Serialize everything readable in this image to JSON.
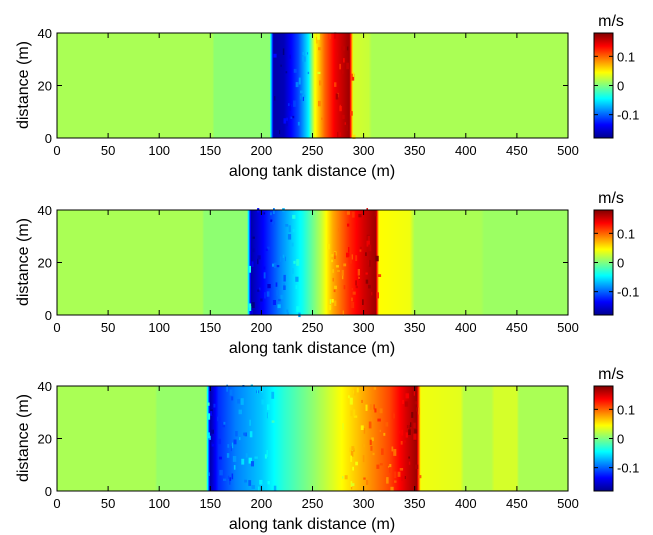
{
  "chart_data": [
    {
      "type": "heatmap",
      "xlabel": "along tank distance (m)",
      "ylabel": "distance (m)",
      "xlim": [
        0,
        500
      ],
      "ylim": [
        0,
        40
      ],
      "x_ticks": [
        "0",
        "50",
        "100",
        "150",
        "200",
        "250",
        "300",
        "350",
        "400",
        "450",
        "500"
      ],
      "y_ticks": [
        "0",
        "20",
        "40"
      ],
      "colorbar": {
        "label": "m/s",
        "range": [
          -0.18,
          0.18
        ],
        "ticks": [
          "0.1",
          "0",
          "-0.1"
        ],
        "tick_values": [
          0.1,
          0,
          -0.1
        ],
        "colormap": "jet"
      },
      "field_profile": [
        {
          "x": 0,
          "v": 0.015
        },
        {
          "x": 152,
          "v": 0.015
        },
        {
          "x": 154,
          "v": 0.005
        },
        {
          "x": 208,
          "v": 0.005
        },
        {
          "x": 212,
          "v": -0.165
        },
        {
          "x": 222,
          "v": -0.16
        },
        {
          "x": 236,
          "v": -0.11
        },
        {
          "x": 246,
          "v": -0.05
        },
        {
          "x": 252,
          "v": 0.04
        },
        {
          "x": 262,
          "v": 0.1
        },
        {
          "x": 272,
          "v": 0.14
        },
        {
          "x": 286,
          "v": 0.17
        },
        {
          "x": 290,
          "v": 0.03
        },
        {
          "x": 305,
          "v": 0.025
        },
        {
          "x": 308,
          "v": 0.015
        },
        {
          "x": 500,
          "v": 0.015
        }
      ]
    },
    {
      "type": "heatmap",
      "xlabel": "along tank distance (m)",
      "ylabel": "distance (m)",
      "xlim": [
        0,
        500
      ],
      "ylim": [
        0,
        40
      ],
      "x_ticks": [
        "0",
        "50",
        "100",
        "150",
        "200",
        "250",
        "300",
        "350",
        "400",
        "450",
        "500"
      ],
      "y_ticks": [
        "0",
        "20",
        "40"
      ],
      "colorbar": {
        "label": "m/s",
        "range": [
          -0.18,
          0.18
        ],
        "ticks": [
          "0.1",
          "0",
          "-0.1"
        ],
        "tick_values": [
          0.1,
          0,
          -0.1
        ],
        "colormap": "jet"
      },
      "field_profile": [
        {
          "x": 0,
          "v": 0.015
        },
        {
          "x": 142,
          "v": 0.015
        },
        {
          "x": 144,
          "v": 0.005
        },
        {
          "x": 186,
          "v": 0.005
        },
        {
          "x": 190,
          "v": -0.165
        },
        {
          "x": 200,
          "v": -0.14
        },
        {
          "x": 218,
          "v": -0.09
        },
        {
          "x": 240,
          "v": -0.04
        },
        {
          "x": 258,
          "v": 0.02
        },
        {
          "x": 270,
          "v": 0.075
        },
        {
          "x": 286,
          "v": 0.12
        },
        {
          "x": 300,
          "v": 0.15
        },
        {
          "x": 312,
          "v": 0.17
        },
        {
          "x": 315,
          "v": 0.045
        },
        {
          "x": 345,
          "v": 0.04
        },
        {
          "x": 350,
          "v": 0.015
        },
        {
          "x": 415,
          "v": 0.015
        },
        {
          "x": 418,
          "v": 0.01
        },
        {
          "x": 500,
          "v": 0.01
        }
      ]
    },
    {
      "type": "heatmap",
      "xlabel": "along tank distance (m)",
      "ylabel": "distance (m)",
      "xlim": [
        0,
        500
      ],
      "ylim": [
        0,
        40
      ],
      "x_ticks": [
        "0",
        "50",
        "100",
        "150",
        "200",
        "250",
        "300",
        "350",
        "400",
        "450",
        "500"
      ],
      "y_ticks": [
        "0",
        "20",
        "40"
      ],
      "colorbar": {
        "label": "m/s",
        "range": [
          -0.18,
          0.18
        ],
        "ticks": [
          "0.1",
          "0",
          "-0.1"
        ],
        "tick_values": [
          0.1,
          0,
          -0.1
        ],
        "colormap": "jet"
      },
      "field_profile": [
        {
          "x": 0,
          "v": 0.015
        },
        {
          "x": 96,
          "v": 0.015
        },
        {
          "x": 98,
          "v": 0.008
        },
        {
          "x": 146,
          "v": 0.008
        },
        {
          "x": 150,
          "v": -0.165
        },
        {
          "x": 158,
          "v": -0.12
        },
        {
          "x": 175,
          "v": -0.09
        },
        {
          "x": 200,
          "v": -0.065
        },
        {
          "x": 222,
          "v": -0.03
        },
        {
          "x": 250,
          "v": 0.005
        },
        {
          "x": 275,
          "v": 0.04
        },
        {
          "x": 300,
          "v": 0.075
        },
        {
          "x": 325,
          "v": 0.11
        },
        {
          "x": 342,
          "v": 0.15
        },
        {
          "x": 352,
          "v": 0.17
        },
        {
          "x": 356,
          "v": 0.04
        },
        {
          "x": 395,
          "v": 0.035
        },
        {
          "x": 398,
          "v": 0.02
        },
        {
          "x": 425,
          "v": 0.02
        },
        {
          "x": 428,
          "v": 0.03
        },
        {
          "x": 450,
          "v": 0.03
        },
        {
          "x": 452,
          "v": 0.015
        },
        {
          "x": 500,
          "v": 0.015
        }
      ]
    }
  ]
}
